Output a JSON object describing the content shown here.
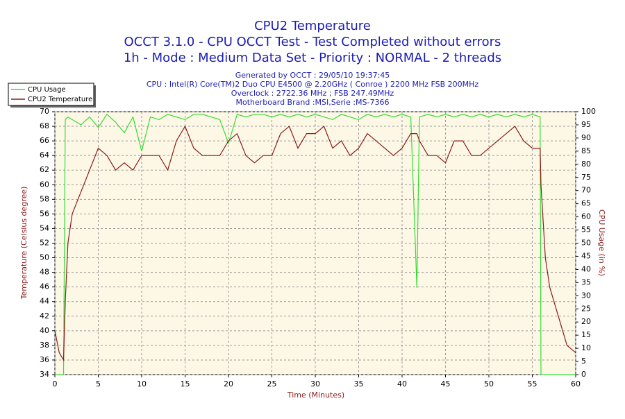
{
  "chart_data": {
    "type": "line",
    "title": "CPU2 Temperature",
    "subtitle": [
      "OCCT 3.1.0 - CPU OCCT Test - Test Completed without errors",
      "1h - Mode : Medium Data Set - Priority : NORMAL - 2 threads"
    ],
    "info": [
      "Generated by OCCT : 29/05/10 19:37:45",
      "CPU : Intel(R) Core(TM)2 Duo CPU E4500 @ 2.20GHz ( Conroe ) 2200 MHz FSB 200MHz",
      "Overclock : 2722.36 MHz ; FSB 247.49MHz",
      "Motherboard Brand :MSI,Serie :MS-7366"
    ],
    "x_label": "Time (Minutes)",
    "y_label": "Temperature (Celsius degree)",
    "y2_label": "CPU Usage (in %)",
    "x": [
      0,
      0.5,
      1,
      1.2,
      1.5,
      2,
      3,
      4,
      5,
      6,
      7,
      8,
      9,
      10,
      11,
      12,
      13,
      14,
      15,
      16,
      17,
      18,
      19,
      20,
      21,
      22,
      23,
      24,
      25,
      26,
      27,
      28,
      29,
      30,
      31,
      32,
      33,
      34,
      35,
      36,
      37,
      38,
      39,
      40,
      41,
      41.7,
      42,
      43,
      44,
      45,
      46,
      47,
      48,
      49,
      50,
      51,
      52,
      53,
      54,
      55,
      55.9,
      56,
      56.5,
      57,
      58,
      59,
      60
    ],
    "series": [
      {
        "name": "CPU Usage",
        "color": "#33dd33",
        "axis": "y2",
        "values": [
          0,
          0,
          0,
          97,
          98,
          97,
          95,
          98,
          94,
          99,
          96,
          92,
          98,
          85,
          98,
          97,
          99,
          98,
          97,
          99,
          99,
          98,
          97,
          88,
          99,
          98,
          99,
          99,
          98,
          99,
          98,
          99,
          98,
          99,
          98,
          97,
          99,
          98,
          97,
          99,
          98,
          99,
          98,
          99,
          98,
          33,
          98,
          99,
          98,
          99,
          98,
          99,
          98,
          99,
          98,
          99,
          98,
          99,
          98,
          99,
          98,
          0,
          0,
          0,
          0,
          0,
          0
        ]
      },
      {
        "name": "CPU2 Temperature",
        "color": "#8b1a1a",
        "values": [
          40,
          37,
          36,
          44,
          52,
          56,
          59,
          62,
          65,
          64,
          62,
          63,
          62,
          64,
          64,
          64,
          62,
          66,
          68,
          65,
          64,
          64,
          64,
          66,
          67,
          64,
          63,
          64,
          64,
          67,
          68,
          65,
          67,
          67,
          68,
          65,
          66,
          64,
          65,
          67,
          66,
          65,
          64,
          65,
          67,
          67,
          66,
          64,
          64,
          63,
          66,
          66,
          64,
          64,
          65,
          66,
          67,
          68,
          66,
          65,
          65,
          60,
          50,
          46,
          42,
          38,
          37
        ]
      }
    ],
    "xlim": [
      0,
      60
    ],
    "xticks": [
      0,
      5,
      10,
      15,
      20,
      25,
      30,
      35,
      40,
      45,
      50,
      55,
      60
    ],
    "ylim": [
      34,
      70
    ],
    "yticks": [
      34,
      36,
      38,
      40,
      42,
      44,
      46,
      48,
      50,
      52,
      54,
      56,
      58,
      60,
      62,
      64,
      66,
      68,
      70
    ],
    "y2lim": [
      0,
      100
    ],
    "y2ticks": [
      0,
      5,
      10,
      15,
      20,
      25,
      30,
      35,
      40,
      45,
      50,
      55,
      60,
      65,
      70,
      75,
      80,
      85,
      90,
      95,
      100
    ],
    "grid": true,
    "legend": "top-left"
  }
}
